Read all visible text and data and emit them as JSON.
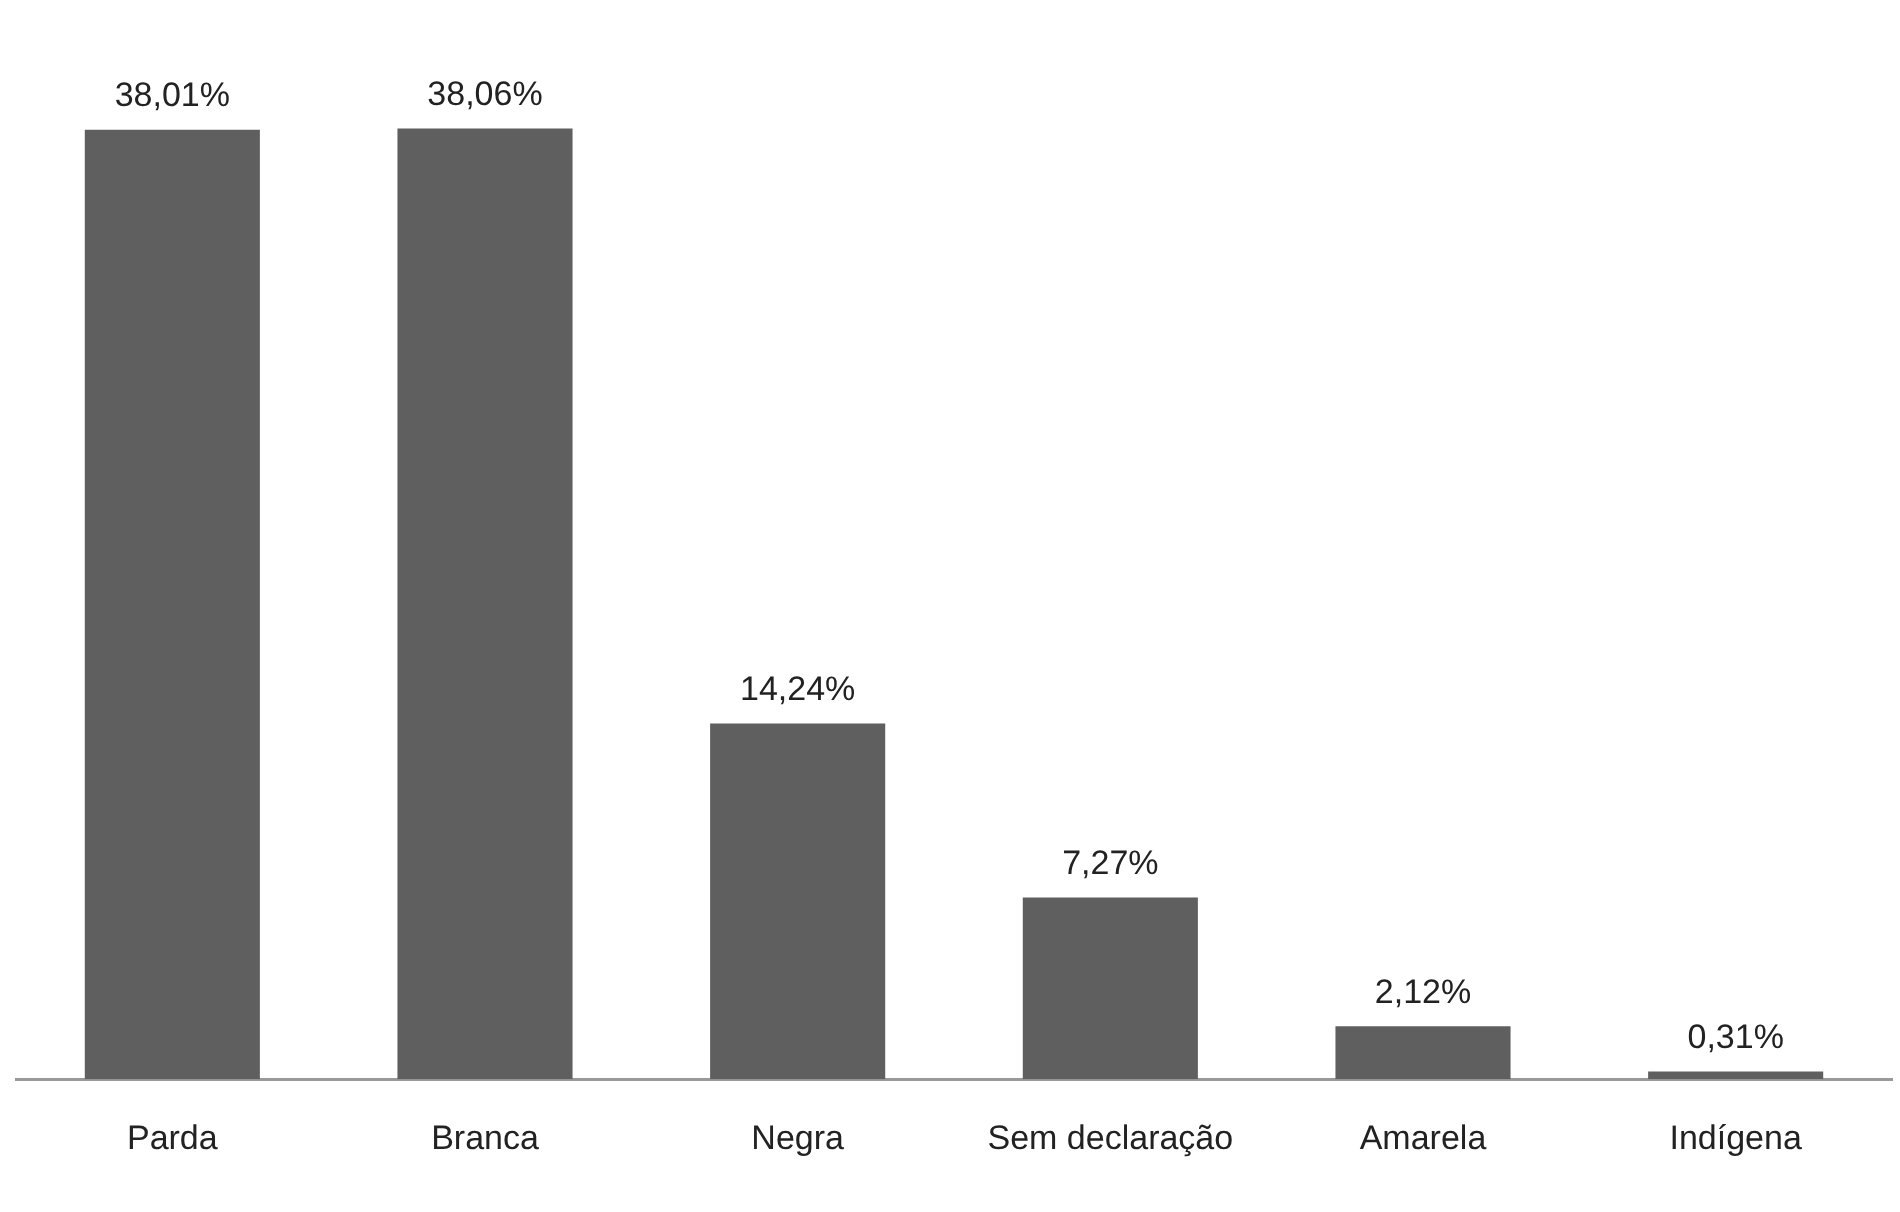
{
  "chart_data": {
    "type": "bar",
    "categories": [
      "Parda",
      "Branca",
      "Negra",
      "Sem declaração",
      "Amarela",
      "Indígena"
    ],
    "values": [
      38.01,
      38.06,
      14.24,
      7.27,
      2.12,
      0.31
    ],
    "value_labels": [
      "38,01%",
      "38,06%",
      "14,24%",
      "7,27%",
      "2,12%",
      "0,31%"
    ],
    "color": "#5f5f5f",
    "grid": false,
    "legend": false
  }
}
